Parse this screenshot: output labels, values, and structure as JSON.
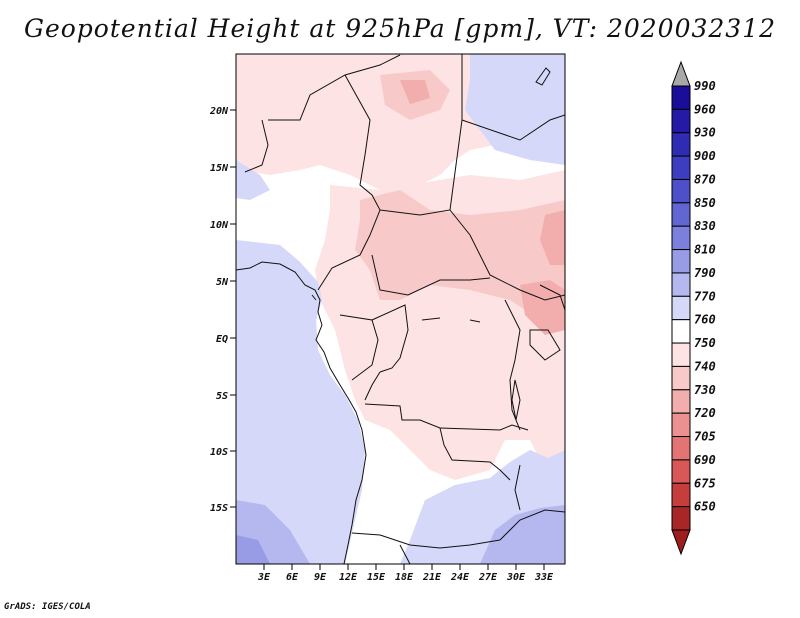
{
  "title": "Geopotential Height at 925hPa [gpm], VT: 2020032312",
  "credit": "GrADS: IGES/COLA",
  "map": {
    "lat_ticks": [
      "20N",
      "15N",
      "10N",
      "5N",
      "EQ",
      "5S",
      "10S",
      "15S"
    ],
    "lon_ticks": [
      "3E",
      "6E",
      "9E",
      "12E",
      "15E",
      "18E",
      "21E",
      "24E",
      "27E",
      "30E",
      "33E"
    ]
  },
  "colorbar": {
    "levels": [
      {
        "label": "990",
        "color": "#1a0d9a"
      },
      {
        "label": "960",
        "color": "#241aa6"
      },
      {
        "label": "930",
        "color": "#2f2bb2"
      },
      {
        "label": "900",
        "color": "#3d3dbf"
      },
      {
        "label": "870",
        "color": "#4e50c9"
      },
      {
        "label": "850",
        "color": "#6266d3"
      },
      {
        "label": "830",
        "color": "#7b80dc"
      },
      {
        "label": "810",
        "color": "#979ce5"
      },
      {
        "label": "790",
        "color": "#b4b8ef"
      },
      {
        "label": "770",
        "color": "#d5d8f8"
      },
      {
        "label": "760",
        "color": "#ffffff"
      },
      {
        "label": "750",
        "color": "#fde3e3"
      },
      {
        "label": "740",
        "color": "#f8c9c9"
      },
      {
        "label": "730",
        "color": "#f2adad"
      },
      {
        "label": "720",
        "color": "#ec9191"
      },
      {
        "label": "705",
        "color": "#e47474"
      },
      {
        "label": "690",
        "color": "#d85858"
      },
      {
        "label": "675",
        "color": "#c63d3d"
      },
      {
        "label": "650",
        "color": "#a82626"
      }
    ],
    "top_arrow_color": "#a8a8a8",
    "bottom_arrow_color": "#9e1e1e"
  }
}
